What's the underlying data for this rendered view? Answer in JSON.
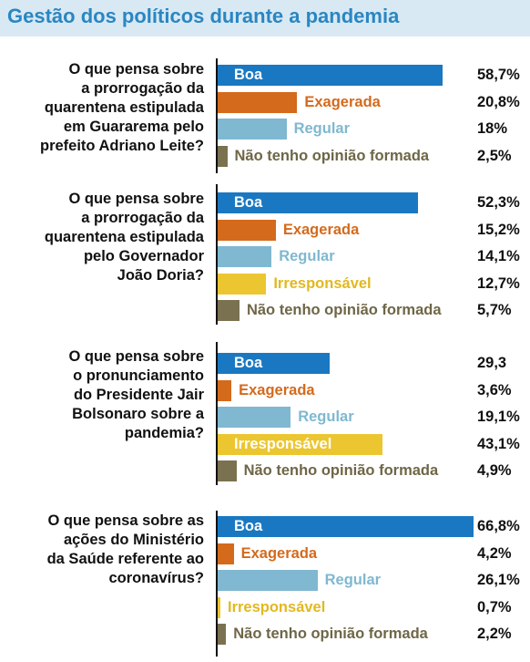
{
  "title": "Gestão dos políticos durante a pandemia",
  "colors": {
    "Boa": "#1a78c2",
    "Exagerada": "#d46a1c",
    "Regular": "#7fb8d0",
    "Irresponsável": "#ecc630",
    "Não tenho opinião formada": "#7a7150"
  },
  "chart_data": [
    {
      "type": "bar",
      "question": "O que pensa sobre a prorrogação da quarentena estipulada em Guararema pelo prefeito Adriano Leite?",
      "question_lines": [
        "O que pensa sobre",
        "a prorrogação da",
        "quarentena estipulada",
        "em Guararema pelo",
        "prefeito Adriano Leite?"
      ],
      "categories": [
        "Boa",
        "Exagerada",
        "Regular",
        "Não tenho opinião formada"
      ],
      "values": [
        58.7,
        20.8,
        18,
        2.5
      ],
      "value_labels": [
        "58,7%",
        "20,8%",
        "18%",
        "2,5%"
      ]
    },
    {
      "type": "bar",
      "question": "O que pensa sobre a prorrogação da quarentena estipulada pelo Governador João Doria?",
      "question_lines": [
        "O que pensa sobre",
        "a prorrogação da",
        "quarentena estipulada",
        "pelo Governador",
        "João Doria?"
      ],
      "categories": [
        "Boa",
        "Exagerada",
        "Regular",
        "Irresponsável",
        "Não tenho opinião formada"
      ],
      "values": [
        52.3,
        15.2,
        14.1,
        12.7,
        5.7
      ],
      "value_labels": [
        "52,3%",
        "15,2%",
        "14,1%",
        "12,7%",
        "5,7%"
      ]
    },
    {
      "type": "bar",
      "question": "O que pensa sobre o pronunciamento do Presidente Jair Bolsonaro sobre a pandemia?",
      "question_lines": [
        "O que pensa sobre",
        "o pronunciamento",
        "do Presidente Jair",
        "Bolsonaro sobre a",
        "pandemia?"
      ],
      "categories": [
        "Boa",
        "Exagerada",
        "Regular",
        "Irresponsável",
        "Não tenho opinião formada"
      ],
      "values": [
        29.3,
        3.6,
        19.1,
        43.1,
        4.9
      ],
      "value_labels": [
        "29,3",
        "3,6%",
        "19,1%",
        "43,1%",
        "4,9%"
      ]
    },
    {
      "type": "bar",
      "question": "O que pensa sobre as ações do Ministério da Saúde referente ao coronavírus?",
      "question_lines": [
        "O que pensa sobre as",
        "ações do Ministério",
        "da Saúde referente ao",
        "coronavírus?"
      ],
      "categories": [
        "Boa",
        "Exagerada",
        "Regular",
        "Irresponsável",
        "Não tenho opinião formada"
      ],
      "values": [
        66.8,
        4.2,
        26.1,
        0.7,
        2.2
      ],
      "value_labels": [
        "66,8%",
        "4,2%",
        "26,1%",
        "0,7%",
        "2,2%"
      ]
    }
  ]
}
